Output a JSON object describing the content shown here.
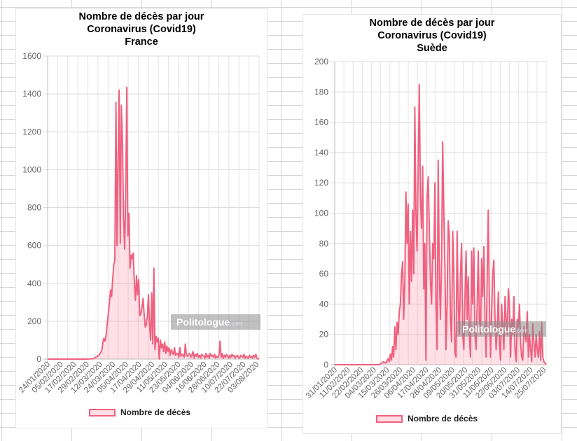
{
  "chart_data": [
    {
      "type": "area",
      "title": [
        "Nombre de décès par jour",
        "Coronavirus (Covid19)",
        "France"
      ],
      "series_name": "Nombre de décès",
      "ylim": [
        0,
        1600
      ],
      "y_ticks": [
        "0",
        "200",
        "400",
        "600",
        "800",
        "1000",
        "1200",
        "1400",
        "1600"
      ],
      "x_start": "2020-01-24",
      "x_days": 195,
      "x_ticks": [
        "24/01/2020",
        "05/02/2020",
        "17/02/2020",
        "29/02/2020",
        "12/03/2020",
        "24/03/2020",
        "05/04/2020",
        "17/04/2020",
        "29/04/2020",
        "11/05/2020",
        "23/05/2020",
        "04/06/2020",
        "16/06/2020",
        "28/06/2020",
        "10/07/2020",
        "22/07/2020",
        "03/08/2020"
      ],
      "grid": true,
      "legend_position": "bottom",
      "color": "#f0607f",
      "points": [
        [
          0,
          0
        ],
        [
          36,
          0
        ],
        [
          42,
          2
        ],
        [
          44,
          8
        ],
        [
          46,
          15
        ],
        [
          48,
          25
        ],
        [
          50,
          45
        ],
        [
          51,
          90
        ],
        [
          52,
          110
        ],
        [
          53,
          95
        ],
        [
          54,
          130
        ],
        [
          55,
          190
        ],
        [
          56,
          240
        ],
        [
          57,
          300
        ],
        [
          58,
          365
        ],
        [
          59,
          330
        ],
        [
          60,
          420
        ],
        [
          61,
          500
        ],
        [
          62,
          520
        ],
        [
          63,
          1355
        ],
        [
          64,
          600
        ],
        [
          65,
          1050
        ],
        [
          66,
          1420
        ],
        [
          67,
          610
        ],
        [
          68,
          1340
        ],
        [
          69,
          1150
        ],
        [
          70,
          750
        ],
        [
          71,
          580
        ],
        [
          72,
          870
        ],
        [
          73,
          1435
        ],
        [
          74,
          650
        ],
        [
          75,
          770
        ],
        [
          76,
          480
        ],
        [
          77,
          550
        ],
        [
          78,
          530
        ],
        [
          79,
          560
        ],
        [
          80,
          400
        ],
        [
          81,
          310
        ],
        [
          82,
          440
        ],
        [
          83,
          340
        ],
        [
          84,
          420
        ],
        [
          85,
          230
        ],
        [
          86,
          240
        ],
        [
          87,
          270
        ],
        [
          88,
          320
        ],
        [
          89,
          240
        ],
        [
          90,
          170
        ],
        [
          91,
          180
        ],
        [
          92,
          230
        ],
        [
          93,
          340
        ],
        [
          94,
          180
        ],
        [
          95,
          100
        ],
        [
          96,
          350
        ],
        [
          97,
          80
        ],
        [
          98,
          480
        ],
        [
          99,
          50
        ],
        [
          100,
          120
        ],
        [
          101,
          90
        ],
        [
          102,
          110
        ],
        [
          103,
          0
        ],
        [
          104,
          100
        ],
        [
          105,
          60
        ],
        [
          106,
          80
        ],
        [
          107,
          40
        ],
        [
          108,
          90
        ],
        [
          109,
          30
        ],
        [
          110,
          70
        ],
        [
          111,
          40
        ],
        [
          112,
          60
        ],
        [
          113,
          20
        ],
        [
          114,
          50
        ],
        [
          115,
          35
        ],
        [
          116,
          25
        ],
        [
          117,
          60
        ],
        [
          118,
          20
        ],
        [
          119,
          30
        ],
        [
          120,
          30
        ],
        [
          121,
          10
        ],
        [
          122,
          60
        ],
        [
          123,
          15
        ],
        [
          124,
          25
        ],
        [
          125,
          20
        ],
        [
          126,
          10
        ],
        [
          127,
          80
        ],
        [
          128,
          20
        ],
        [
          129,
          15
        ],
        [
          130,
          25
        ],
        [
          131,
          30
        ],
        [
          132,
          10
        ],
        [
          133,
          20
        ],
        [
          134,
          40
        ],
        [
          135,
          5
        ],
        [
          136,
          25
        ],
        [
          137,
          15
        ],
        [
          138,
          30
        ],
        [
          139,
          10
        ],
        [
          140,
          20
        ],
        [
          141,
          5
        ],
        [
          142,
          25
        ],
        [
          143,
          20
        ],
        [
          144,
          15
        ],
        [
          145,
          5
        ],
        [
          146,
          30
        ],
        [
          147,
          10
        ],
        [
          148,
          20
        ],
        [
          149,
          5
        ],
        [
          150,
          30
        ],
        [
          151,
          15
        ],
        [
          152,
          20
        ],
        [
          153,
          10
        ],
        [
          154,
          25
        ],
        [
          155,
          5
        ],
        [
          156,
          15
        ],
        [
          157,
          10
        ],
        [
          158,
          20
        ],
        [
          159,
          95
        ],
        [
          160,
          10
        ],
        [
          161,
          30
        ],
        [
          162,
          5
        ],
        [
          163,
          20
        ],
        [
          164,
          10
        ],
        [
          165,
          25
        ],
        [
          166,
          15
        ],
        [
          167,
          5
        ],
        [
          168,
          20
        ],
        [
          169,
          10
        ],
        [
          170,
          25
        ],
        [
          171,
          15
        ],
        [
          172,
          20
        ],
        [
          173,
          5
        ],
        [
          174,
          15
        ],
        [
          175,
          20
        ],
        [
          176,
          10
        ],
        [
          177,
          5
        ],
        [
          178,
          20
        ],
        [
          179,
          15
        ],
        [
          180,
          10
        ],
        [
          181,
          25
        ],
        [
          182,
          5
        ],
        [
          183,
          15
        ],
        [
          184,
          10
        ],
        [
          185,
          5
        ],
        [
          186,
          20
        ],
        [
          187,
          10
        ],
        [
          188,
          15
        ],
        [
          189,
          5
        ],
        [
          190,
          20
        ],
        [
          191,
          10
        ],
        [
          192,
          25
        ],
        [
          193,
          5
        ],
        [
          194,
          2
        ],
        [
          195,
          0
        ]
      ]
    },
    {
      "type": "area",
      "title": [
        "Nombre de décès par jour",
        "Coronavirus (Covid19)",
        "Suède"
      ],
      "series_name": "Nombre de décès",
      "ylim": [
        0,
        200
      ],
      "y_ticks": [
        "0",
        "20",
        "40",
        "60",
        "80",
        "100",
        "120",
        "140",
        "160",
        "180",
        "200"
      ],
      "x_start": "2020-01-31",
      "x_days": 190,
      "x_ticks": [
        "31/01/2020",
        "11/02/2020",
        "22/02/2020",
        "04/03/2020",
        "15/03/2020",
        "26/03/2020",
        "06/04/2020",
        "17/04/2020",
        "28/04/2020",
        "09/05/2020",
        "20/05/2020",
        "31/05/2020",
        "11/06/2020",
        "22/06/2020",
        "03/07/2020",
        "14/07/2020",
        "25/07/2020"
      ],
      "grid": true,
      "legend_position": "bottom",
      "color": "#f0607f",
      "points": [
        [
          0,
          0
        ],
        [
          40,
          0
        ],
        [
          42,
          1
        ],
        [
          44,
          2
        ],
        [
          46,
          1
        ],
        [
          48,
          4
        ],
        [
          49,
          2
        ],
        [
          50,
          7
        ],
        [
          51,
          3
        ],
        [
          52,
          12
        ],
        [
          53,
          5
        ],
        [
          54,
          25
        ],
        [
          55,
          10
        ],
        [
          56,
          28
        ],
        [
          57,
          20
        ],
        [
          58,
          35
        ],
        [
          59,
          40
        ],
        [
          60,
          60
        ],
        [
          61,
          68
        ],
        [
          62,
          30
        ],
        [
          63,
          55
        ],
        [
          64,
          114
        ],
        [
          65,
          80
        ],
        [
          66,
          106
        ],
        [
          67,
          40
        ],
        [
          68,
          88
        ],
        [
          69,
          55
        ],
        [
          70,
          102
        ],
        [
          71,
          60
        ],
        [
          72,
          170
        ],
        [
          73,
          100
        ],
        [
          74,
          75
        ],
        [
          75,
          130
        ],
        [
          76,
          185
        ],
        [
          77,
          110
        ],
        [
          78,
          90
        ],
        [
          79,
          131
        ],
        [
          80,
          50
        ],
        [
          81,
          80
        ],
        [
          82,
          3
        ],
        [
          83,
          110
        ],
        [
          84,
          124
        ],
        [
          85,
          90
        ],
        [
          86,
          55
        ],
        [
          87,
          40
        ],
        [
          88,
          80
        ],
        [
          89,
          70
        ],
        [
          90,
          120
        ],
        [
          91,
          40
        ],
        [
          92,
          10
        ],
        [
          93,
          135
        ],
        [
          94,
          60
        ],
        [
          95,
          30
        ],
        [
          96,
          70
        ],
        [
          97,
          147
        ],
        [
          98,
          100
        ],
        [
          99,
          65
        ],
        [
          100,
          10
        ],
        [
          101,
          40
        ],
        [
          102,
          95
        ],
        [
          103,
          85
        ],
        [
          104,
          30
        ],
        [
          105,
          15
        ],
        [
          106,
          88
        ],
        [
          107,
          60
        ],
        [
          108,
          8
        ],
        [
          109,
          5
        ],
        [
          110,
          88
        ],
        [
          111,
          40
        ],
        [
          112,
          20
        ],
        [
          113,
          60
        ],
        [
          114,
          80
        ],
        [
          115,
          20
        ],
        [
          116,
          10
        ],
        [
          117,
          45
        ],
        [
          118,
          75
        ],
        [
          119,
          30
        ],
        [
          120,
          58
        ],
        [
          121,
          20
        ],
        [
          122,
          5
        ],
        [
          123,
          75
        ],
        [
          124,
          40
        ],
        [
          125,
          77
        ],
        [
          126,
          20
        ],
        [
          127,
          10
        ],
        [
          128,
          40
        ],
        [
          129,
          75
        ],
        [
          130,
          30
        ],
        [
          131,
          20
        ],
        [
          132,
          70
        ],
        [
          133,
          45
        ],
        [
          134,
          78
        ],
        [
          135,
          30
        ],
        [
          136,
          5
        ],
        [
          137,
          60
        ],
        [
          138,
          102
        ],
        [
          139,
          40
        ],
        [
          140,
          5
        ],
        [
          141,
          35
        ],
        [
          142,
          60
        ],
        [
          143,
          69
        ],
        [
          144,
          30
        ],
        [
          145,
          10
        ],
        [
          146,
          25
        ],
        [
          147,
          48
        ],
        [
          148,
          15
        ],
        [
          149,
          3
        ],
        [
          150,
          40
        ],
        [
          151,
          25
        ],
        [
          152,
          10
        ],
        [
          153,
          45
        ],
        [
          154,
          30
        ],
        [
          155,
          20
        ],
        [
          156,
          50
        ],
        [
          157,
          40
        ],
        [
          158,
          5
        ],
        [
          159,
          30
        ],
        [
          160,
          20
        ],
        [
          161,
          45
        ],
        [
          162,
          10
        ],
        [
          163,
          2
        ],
        [
          164,
          30
        ],
        [
          165,
          25
        ],
        [
          166,
          40
        ],
        [
          167,
          15
        ],
        [
          168,
          5
        ],
        [
          169,
          3
        ],
        [
          170,
          25
        ],
        [
          171,
          20
        ],
        [
          172,
          15
        ],
        [
          173,
          35
        ],
        [
          174,
          5
        ],
        [
          175,
          20
        ],
        [
          176,
          10
        ],
        [
          177,
          2
        ],
        [
          178,
          27
        ],
        [
          179,
          15
        ],
        [
          180,
          5
        ],
        [
          181,
          20
        ],
        [
          182,
          10
        ],
        [
          183,
          5
        ],
        [
          184,
          22
        ],
        [
          185,
          3
        ],
        [
          186,
          28
        ],
        [
          187,
          5
        ],
        [
          188,
          2
        ],
        [
          189,
          1
        ],
        [
          190,
          0
        ]
      ]
    }
  ],
  "watermark": {
    "brand": "Politologue",
    "suffix": ".com"
  }
}
